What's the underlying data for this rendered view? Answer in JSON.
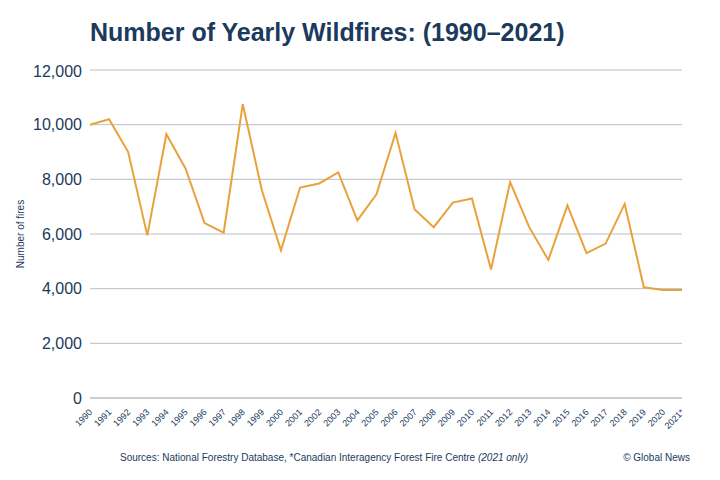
{
  "chart_data": {
    "type": "line",
    "title": "Number of Yearly Wildfires: (1990–2021)",
    "y_label": "Number of fires",
    "source": "Sources: National Forestry Database, *Canadian Interagency Forest Fire Centre",
    "source_note": "(2021 only)",
    "credit": "© Global News",
    "categories": [
      "1990",
      "1991",
      "1992",
      "1993",
      "1994",
      "1995",
      "1996",
      "1997",
      "1998",
      "1999",
      "2000",
      "2001",
      "2002",
      "2003",
      "2004",
      "2005",
      "2006",
      "2007",
      "2008",
      "2009",
      "2010",
      "2011",
      "2012",
      "2013",
      "2014",
      "2015",
      "2016",
      "2017",
      "2018",
      "2019",
      "2020",
      "2021*"
    ],
    "values": [
      10000,
      10200,
      9000,
      5950,
      9650,
      8400,
      6400,
      6050,
      10750,
      7600,
      5400,
      7700,
      7850,
      8250,
      6500,
      7450,
      9700,
      6900,
      6250,
      7150,
      7300,
      4700,
      7900,
      6250,
      5050,
      7050,
      5300,
      5650,
      7100,
      4050,
      3950,
      3950
    ],
    "color": "#E9A23B",
    "ylim": [
      0,
      12000
    ],
    "yticks": [
      0,
      {
        "value": 2000,
        "label": "2,000"
      },
      {
        "value": 4000,
        "label": "4,000"
      },
      {
        "value": 6000,
        "label": "6,000"
      },
      {
        "value": 8000,
        "label": "8,000"
      },
      {
        "value": 10000,
        "label": "10,000"
      },
      {
        "value": 12000,
        "label": "12,000"
      }
    ],
    "grid": true
  }
}
